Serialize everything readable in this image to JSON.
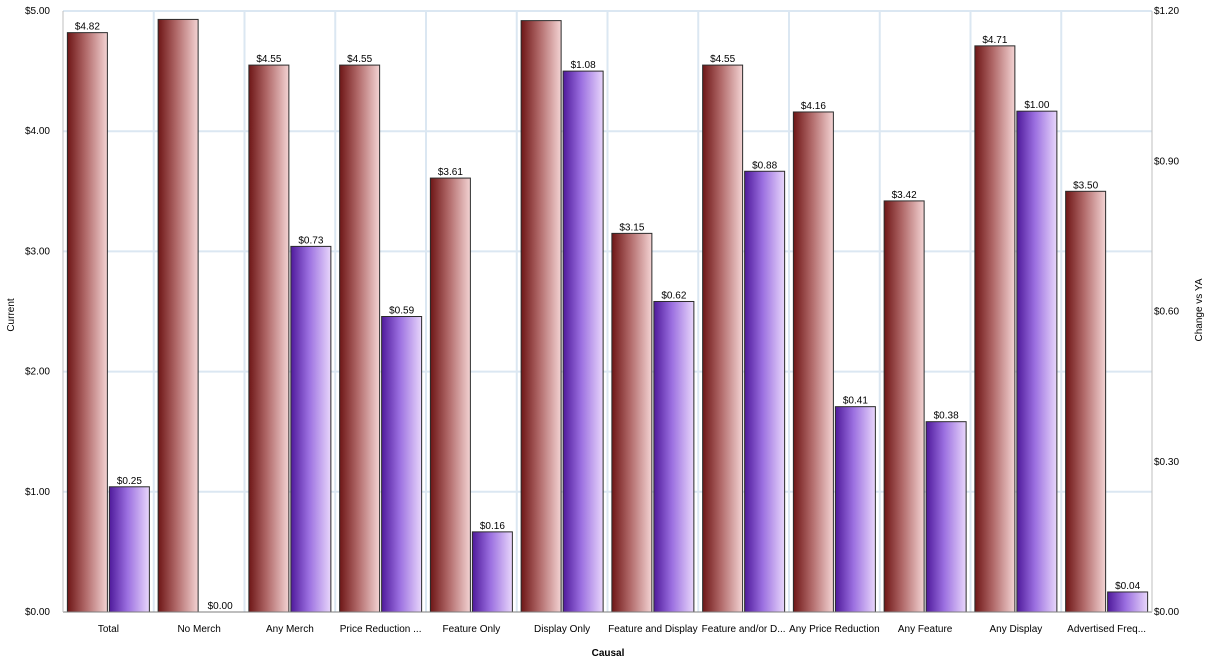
{
  "chart_data": {
    "type": "bar",
    "xlabel": "Causal",
    "ylabel_left": "Current",
    "ylabel_right": "Change vs YA",
    "ylim_left": [
      0,
      5
    ],
    "ylim_right": [
      0,
      1.2
    ],
    "yticks_left": [
      "$0.00",
      "$1.00",
      "$2.00",
      "$3.00",
      "$4.00",
      "$5.00"
    ],
    "yticks_right": [
      "$0.00",
      "$0.30",
      "$0.60",
      "$0.90",
      "$1.20"
    ],
    "grid": true,
    "categories": [
      "Total",
      "No Merch",
      "Any Merch",
      "Price Reduction ...",
      "Feature Only",
      "Display Only",
      "Feature and Display",
      "Feature and/or D...",
      "Any Price Reduction",
      "Any Feature",
      "Any Display",
      "Advertised Freq..."
    ],
    "series": [
      {
        "axis": "left",
        "color": "#8b2a2a",
        "values": [
          4.82,
          4.93,
          4.55,
          4.55,
          3.61,
          4.92,
          3.15,
          4.55,
          4.16,
          3.42,
          4.71,
          3.5
        ],
        "labels": [
          "$4.82",
          "",
          "$4.55",
          "$4.55",
          "$3.61",
          "",
          "$3.15",
          "$4.55",
          "$4.16",
          "$3.42",
          "$4.71",
          "$3.50"
        ]
      },
      {
        "axis": "right",
        "color": "#6a2db5",
        "values": [
          0.25,
          0.0,
          0.73,
          0.59,
          0.16,
          1.08,
          0.62,
          0.88,
          0.41,
          0.38,
          1.0,
          0.04
        ],
        "labels": [
          "$0.25",
          "$0.00",
          "$0.73",
          "$0.59",
          "$0.16",
          "$1.08",
          "$0.62",
          "$0.88",
          "$0.41",
          "$0.38",
          "$1.00",
          "$0.04"
        ]
      }
    ]
  }
}
